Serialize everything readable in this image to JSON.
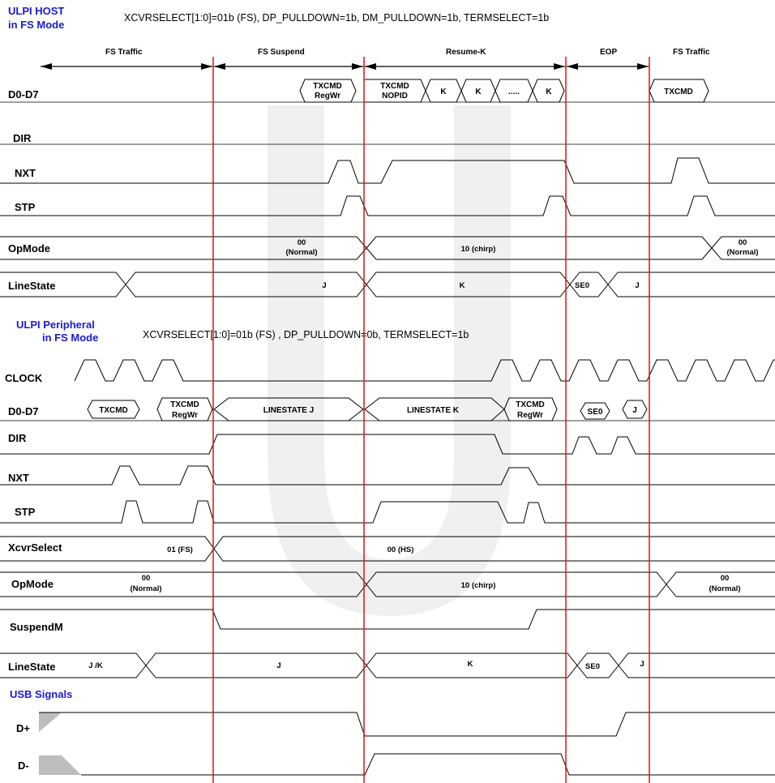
{
  "host": {
    "title": [
      "ULPI HOST",
      "in FS Mode"
    ],
    "condition": "XCVRSELECT[1:0]=01b (FS), DP_PULLDOWN=1b, DM_PULLDOWN=1b, TERMSELECT=1b",
    "phases": [
      "FS Traffic",
      "FS Suspend",
      "Resume-K",
      "EOP",
      "FS Traffic"
    ],
    "signals": [
      "D0-D7",
      "DIR",
      "NXT",
      "STP",
      "OpMode",
      "LineState"
    ],
    "d0d7": {
      "txcmd_regwr": [
        "TXCMD",
        "RegWr"
      ],
      "txcmd_nopid": [
        "TXCMD",
        "NOPID"
      ],
      "k1": "K",
      "k2": "K",
      "dots": ".....",
      "k3": "K",
      "txcmd_end": "TXCMD"
    },
    "opmode": {
      "normal": [
        "00",
        "(Normal)"
      ],
      "chirp": "10 (chirp)",
      "normal_end": [
        "00",
        "(Normal)"
      ]
    },
    "linestate": {
      "j": "J",
      "k": "K",
      "se0": "SE0",
      "j2": "J"
    }
  },
  "peripheral": {
    "title": [
      "ULPI Peripheral",
      "in FS Mode"
    ],
    "condition": "XCVRSELECT[1:0]=01b (FS)  , DP_PULLDOWN=0b, TERMSELECT=1b",
    "signals": [
      "CLOCK",
      "D0-D7",
      "DIR",
      "NXT",
      "STP",
      "XcvrSelect",
      "OpMode",
      "SuspendM",
      "LineState"
    ],
    "d0d7": {
      "txcmd": "TXCMD",
      "txcmd_regwr": [
        "TXCMD",
        "RegWr"
      ],
      "linestate_j": "LINESTATE J",
      "linestate_k": "LINESTATE K",
      "txcmd_regwr2": [
        "TXCMD",
        "RegWr"
      ],
      "se0": "SE0",
      "j": "J"
    },
    "xcvrselect": {
      "fs": "01 (FS)",
      "hs": "00 (HS)"
    },
    "opmode": {
      "normal": [
        "00",
        "(Normal)"
      ],
      "chirp": "10 (chirp)",
      "normal_end": [
        "00",
        "(Normal)"
      ]
    },
    "linestate": {
      "jk": "J /K",
      "j": "J",
      "k": "K",
      "se0": "SE0",
      "j2": "J"
    }
  },
  "usb": {
    "title": "USB Signals",
    "signals": [
      "D+",
      "D-"
    ]
  }
}
